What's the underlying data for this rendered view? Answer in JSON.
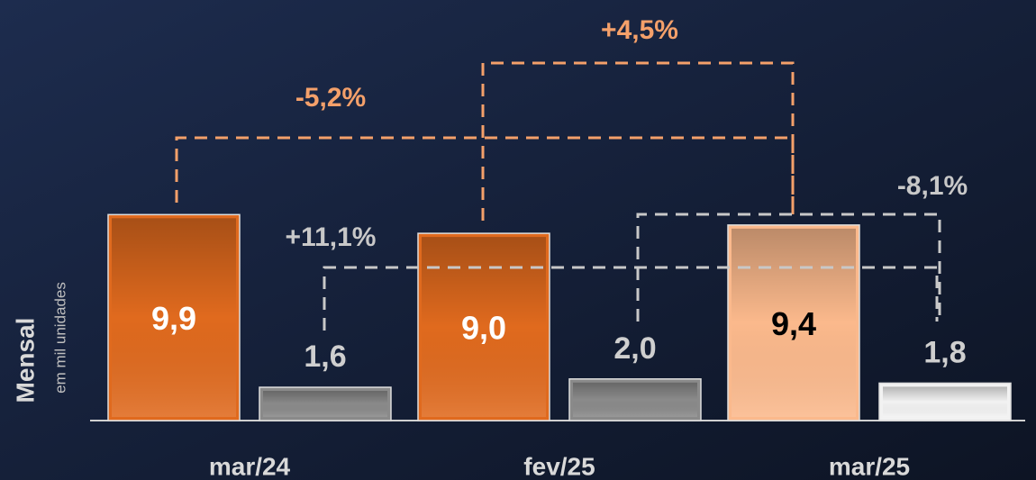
{
  "chart_data": {
    "type": "bar",
    "y_label": "Mensal",
    "y_sublabel": "em mil unidades",
    "categories": [
      "mar/24",
      "fev/25",
      "mar/25"
    ],
    "series": [
      {
        "colors": [
          "#e06a1e",
          "#e06a1e",
          "#fbb98c"
        ],
        "values": [
          9.9,
          9.0,
          9.4
        ],
        "value_labels": [
          "9,9",
          "9,0",
          "9,4"
        ]
      },
      {
        "colors": [
          "#8a8a8a",
          "#8a8a8a",
          "#f2f2f2"
        ],
        "values": [
          1.6,
          2.0,
          1.8
        ],
        "value_labels": [
          "1,6",
          "2,0",
          "1,8"
        ]
      }
    ],
    "annotations": [
      "+4,5%",
      "-5,2%",
      "-8,1%",
      "+11,1%"
    ]
  }
}
